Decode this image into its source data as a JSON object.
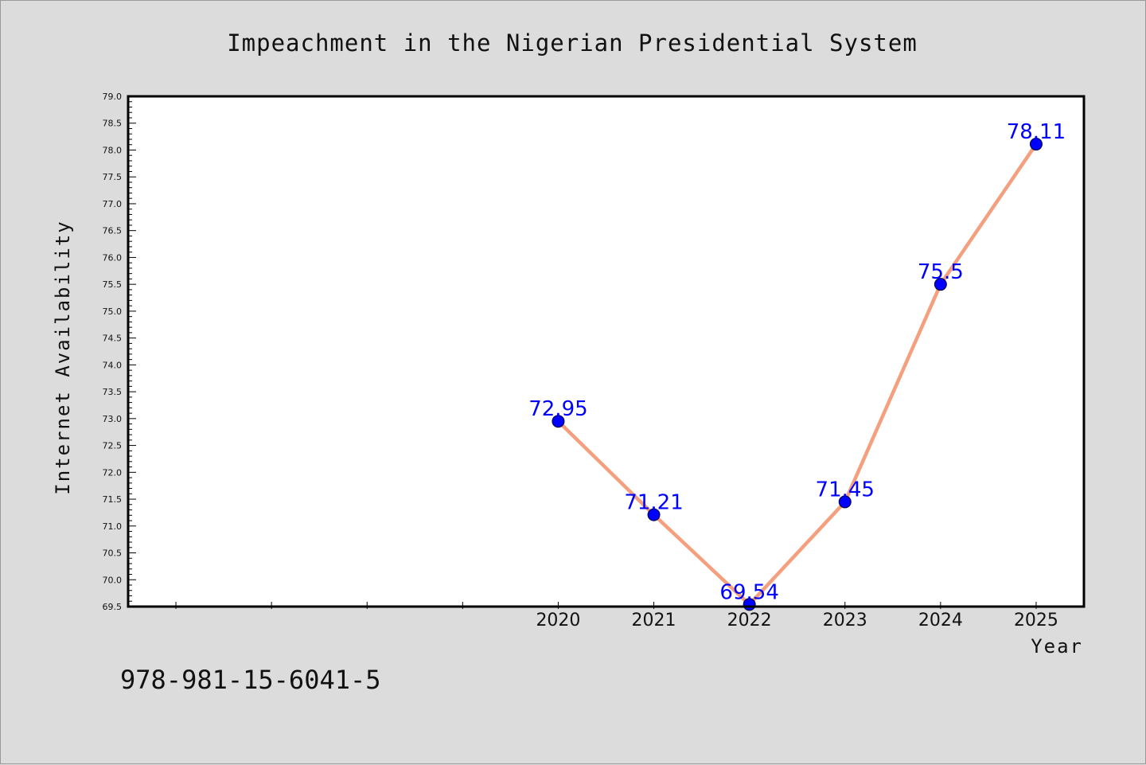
{
  "chart_data": {
    "type": "line",
    "title": "Impeachment in the Nigerian Presidential System",
    "xlabel": "Year",
    "ylabel": "Internet Availability",
    "x": [
      "2020",
      "2021",
      "2022",
      "2023",
      "2024",
      "2025"
    ],
    "y": [
      72.95,
      71.21,
      69.54,
      71.45,
      75.5,
      78.11
    ],
    "data_labels": [
      "72.95",
      "71.21",
      "69.54",
      "71.45",
      "75.5",
      "78.11"
    ],
    "ylim": [
      69.5,
      79.0
    ],
    "yticks": [
      "69.5",
      "70.0",
      "70.5",
      "71.0",
      "71.5",
      "72.0",
      "72.5",
      "73.0",
      "73.5",
      "74.0",
      "74.5",
      "75.0",
      "75.5",
      "76.0",
      "76.5",
      "77.0",
      "77.5",
      "78.0",
      "78.5",
      "79.0"
    ],
    "x_axis_extent": [
      2015.5,
      2025.5
    ],
    "grid": false,
    "colors": {
      "line": "#f4a07f",
      "marker": "#0000ff",
      "data_label": "#0000ff",
      "background": "#dcdcdc",
      "plot_background": "#ffffff"
    }
  },
  "footer": {
    "isbn": "978-981-15-6041-5"
  }
}
